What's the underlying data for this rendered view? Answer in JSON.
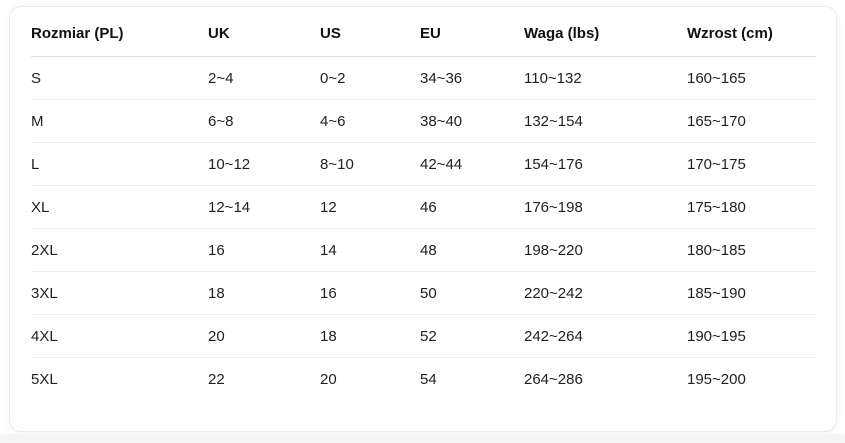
{
  "card": {
    "name": "size-conversion-chart",
    "colors": {
      "card_background": "#ffffff",
      "card_border": "#ebebee",
      "header_text": "#111111",
      "cell_text": "#1f1f1f",
      "header_divider": "#dcdcdf",
      "row_divider": "#ececef",
      "page_bottom_strip": "#f4f5f6"
    }
  },
  "table": {
    "columns": [
      "Rozmiar (PL)",
      "UK",
      "US",
      "EU",
      "Waga (lbs)",
      "Wzrost (cm)"
    ],
    "rows": [
      [
        "S",
        "2~4",
        "0~2",
        "34~36",
        "110~132",
        "160~165"
      ],
      [
        "M",
        "6~8",
        "4~6",
        "38~40",
        "132~154",
        "165~170"
      ],
      [
        "L",
        "10~12",
        "8~10",
        "42~44",
        "154~176",
        "170~175"
      ],
      [
        "XL",
        "12~14",
        "12",
        "46",
        "176~198",
        "175~180"
      ],
      [
        "2XL",
        "16",
        "14",
        "48",
        "198~220",
        "180~185"
      ],
      [
        "3XL",
        "18",
        "16",
        "50",
        "220~242",
        "185~190"
      ],
      [
        "4XL",
        "20",
        "18",
        "52",
        "242~264",
        "190~195"
      ],
      [
        "5XL",
        "22",
        "20",
        "54",
        "264~286",
        "195~200"
      ]
    ]
  }
}
